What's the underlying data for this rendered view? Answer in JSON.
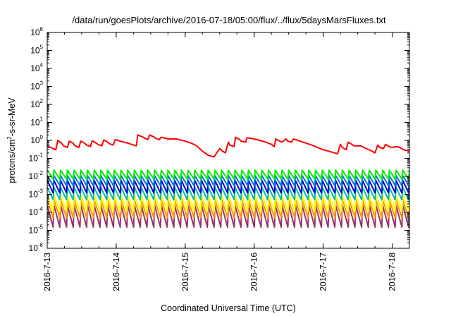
{
  "chart_data": {
    "type": "line",
    "title": "/data/run/goesPlots/archive/2016-07-18/05:00/flux/../flux/5daysMarsFluxes.txt",
    "xlabel": "Coordinated Universal Time (UTC)",
    "ylabel": {
      "prefix": "protons/cm",
      "exponent": "2",
      "suffix": "-s-sr-MeV"
    },
    "yscale": "log",
    "ylim": [
      1e-06,
      1000000.0
    ],
    "xlim": [
      "2016-07-13",
      "2016-07-18T06:00"
    ],
    "x_ticks": [
      {
        "value": "2016-07-13",
        "label": "2016-7-13"
      },
      {
        "value": "2016-07-14",
        "label": "2016-7-14"
      },
      {
        "value": "2016-07-15",
        "label": "2016-7-15"
      },
      {
        "value": "2016-07-16",
        "label": "2016-7-16"
      },
      {
        "value": "2016-07-17",
        "label": "2016-7-17"
      },
      {
        "value": "2016-07-18",
        "label": "2016-7-18"
      }
    ],
    "y_ticks": [
      {
        "value": 1e-06,
        "base": "10",
        "exp": "-6"
      },
      {
        "value": 1e-05,
        "base": "10",
        "exp": "-5"
      },
      {
        "value": 0.0001,
        "base": "10",
        "exp": "-4"
      },
      {
        "value": 0.001,
        "base": "10",
        "exp": "-3"
      },
      {
        "value": 0.01,
        "base": "10",
        "exp": "-2"
      },
      {
        "value": 0.1,
        "base": "10",
        "exp": "-1"
      },
      {
        "value": 1,
        "base": "10",
        "exp": "0"
      },
      {
        "value": 10,
        "base": "10",
        "exp": "1"
      },
      {
        "value": 100,
        "base": "10",
        "exp": "2"
      },
      {
        "value": 1000,
        "base": "10",
        "exp": "3"
      },
      {
        "value": 10000,
        "base": "10",
        "exp": "4"
      },
      {
        "value": 100000,
        "base": "10",
        "exp": "5"
      },
      {
        "value": 1000000,
        "base": "10",
        "exp": "6"
      }
    ],
    "grid": false,
    "legend": "none",
    "series": [
      {
        "color": "#ff0000",
        "x": [
          "2016-07-13T00:00",
          "2016-07-13T02:00",
          "2016-07-13T03:00",
          "2016-07-13T03:40",
          "2016-07-13T05:00",
          "2016-07-13T05:40",
          "2016-07-13T07:00",
          "2016-07-13T07:40",
          "2016-07-13T09:00",
          "2016-07-13T09:40",
          "2016-07-13T11:00",
          "2016-07-13T11:40",
          "2016-07-13T13:00",
          "2016-07-13T13:40",
          "2016-07-13T15:00",
          "2016-07-13T15:40",
          "2016-07-13T17:00",
          "2016-07-13T17:40",
          "2016-07-13T19:00",
          "2016-07-13T19:40",
          "2016-07-13T21:00",
          "2016-07-13T21:40",
          "2016-07-13T23:00",
          "2016-07-13T23:40",
          "2016-07-14T02:00",
          "2016-07-14T04:00",
          "2016-07-14T06:00",
          "2016-07-14T07:00",
          "2016-07-14T07:30",
          "2016-07-14T09:00",
          "2016-07-14T09:40",
          "2016-07-14T11:00",
          "2016-07-14T11:40",
          "2016-07-14T13:00",
          "2016-07-14T13:40",
          "2016-07-14T15:00",
          "2016-07-14T15:40",
          "2016-07-14T18:00",
          "2016-07-14T21:00",
          "2016-07-15T00:00",
          "2016-07-15T02:00",
          "2016-07-15T04:00",
          "2016-07-15T06:00",
          "2016-07-15T08:00",
          "2016-07-15T10:00",
          "2016-07-15T12:00",
          "2016-07-15T13:00",
          "2016-07-15T14:00",
          "2016-07-15T15:00",
          "2016-07-15T15:30",
          "2016-07-15T17:00",
          "2016-07-15T17:30",
          "2016-07-15T19:00",
          "2016-07-15T19:30",
          "2016-07-15T21:00",
          "2016-07-15T21:30",
          "2016-07-16T00:00",
          "2016-07-16T02:00",
          "2016-07-16T04:00",
          "2016-07-16T06:00",
          "2016-07-16T07:00",
          "2016-07-16T07:30",
          "2016-07-16T09:00",
          "2016-07-16T09:40",
          "2016-07-16T11:00",
          "2016-07-16T11:40",
          "2016-07-16T13:00",
          "2016-07-16T13:40",
          "2016-07-16T16:00",
          "2016-07-16T18:00",
          "2016-07-16T20:00",
          "2016-07-16T22:00",
          "2016-07-17T00:00",
          "2016-07-17T02:00",
          "2016-07-17T04:00",
          "2016-07-17T05:00",
          "2016-07-17T06:00",
          "2016-07-17T06:40",
          "2016-07-17T08:00",
          "2016-07-17T08:40",
          "2016-07-17T10:00",
          "2016-07-17T10:40",
          "2016-07-17T13:00",
          "2016-07-17T15:00",
          "2016-07-17T17:00",
          "2016-07-17T18:00",
          "2016-07-17T19:00",
          "2016-07-17T19:40",
          "2016-07-17T21:00",
          "2016-07-17T21:40",
          "2016-07-17T23:00",
          "2016-07-17T23:40",
          "2016-07-18T02:00",
          "2016-07-18T04:00",
          "2016-07-18T06:00"
        ],
        "y": [
          0.5,
          0.35,
          0.3,
          1.0,
          0.7,
          0.5,
          0.4,
          0.9,
          0.7,
          0.5,
          0.4,
          0.9,
          0.7,
          0.55,
          0.45,
          0.95,
          0.7,
          0.6,
          0.5,
          1.05,
          0.8,
          0.65,
          0.55,
          1.1,
          0.85,
          0.7,
          0.55,
          0.5,
          2.0,
          1.6,
          1.4,
          1.1,
          2.0,
          1.6,
          1.3,
          1.1,
          1.5,
          1.2,
          1.2,
          0.9,
          0.7,
          0.5,
          0.25,
          0.15,
          0.12,
          0.35,
          0.25,
          0.2,
          0.8,
          0.55,
          0.45,
          1.5,
          1.1,
          0.9,
          0.8,
          1.4,
          1.2,
          1.0,
          0.8,
          0.6,
          0.45,
          1.2,
          0.9,
          0.8,
          1.2,
          0.9,
          0.8,
          1.2,
          0.9,
          0.7,
          0.55,
          0.4,
          0.3,
          0.25,
          0.2,
          0.18,
          0.6,
          0.4,
          0.3,
          0.8,
          0.6,
          0.5,
          0.5,
          0.35,
          0.25,
          0.2,
          0.55,
          0.4,
          0.35,
          0.6,
          0.45,
          0.4,
          0.45,
          0.3,
          0.25
        ]
      },
      {
        "color": "#00ee00",
        "sawtooth": {
          "x_start": "2016-07-13",
          "x_end": "2016-07-18T06:00",
          "cycles": 54,
          "peak": 0.022,
          "trough": 0.007
        }
      },
      {
        "color": "#0077dd",
        "sawtooth": {
          "x_start": "2016-07-13",
          "x_end": "2016-07-18T06:00",
          "cycles": 54,
          "peak": 0.011,
          "trough": 0.003
        }
      },
      {
        "color": "#0000cc",
        "sawtooth": {
          "x_start": "2016-07-13",
          "x_end": "2016-07-18T06:00",
          "cycles": 54,
          "peak": 0.006,
          "trough": 0.0012
        }
      },
      {
        "color": "#00bbaa",
        "sawtooth": {
          "x_start": "2016-07-13",
          "x_end": "2016-07-18T06:00",
          "cycles": 54,
          "peak": 0.0025,
          "trough": 0.0005
        }
      },
      {
        "color": "#ffff00",
        "sawtooth": {
          "x_start": "2016-07-13",
          "x_end": "2016-07-18T06:00",
          "cycles": 54,
          "peak": 0.0009,
          "trough": 0.00012
        }
      },
      {
        "color": "#ff9900",
        "sawtooth": {
          "x_start": "2016-07-13",
          "x_end": "2016-07-18T06:00",
          "cycles": 54,
          "peak": 0.0005,
          "trough": 5e-05
        }
      },
      {
        "color": "#993366",
        "sawtooth": {
          "x_start": "2016-07-13",
          "x_end": "2016-07-18T06:00",
          "cycles": 54,
          "peak": 0.00025,
          "trough": 1.5e-05
        }
      }
    ]
  }
}
